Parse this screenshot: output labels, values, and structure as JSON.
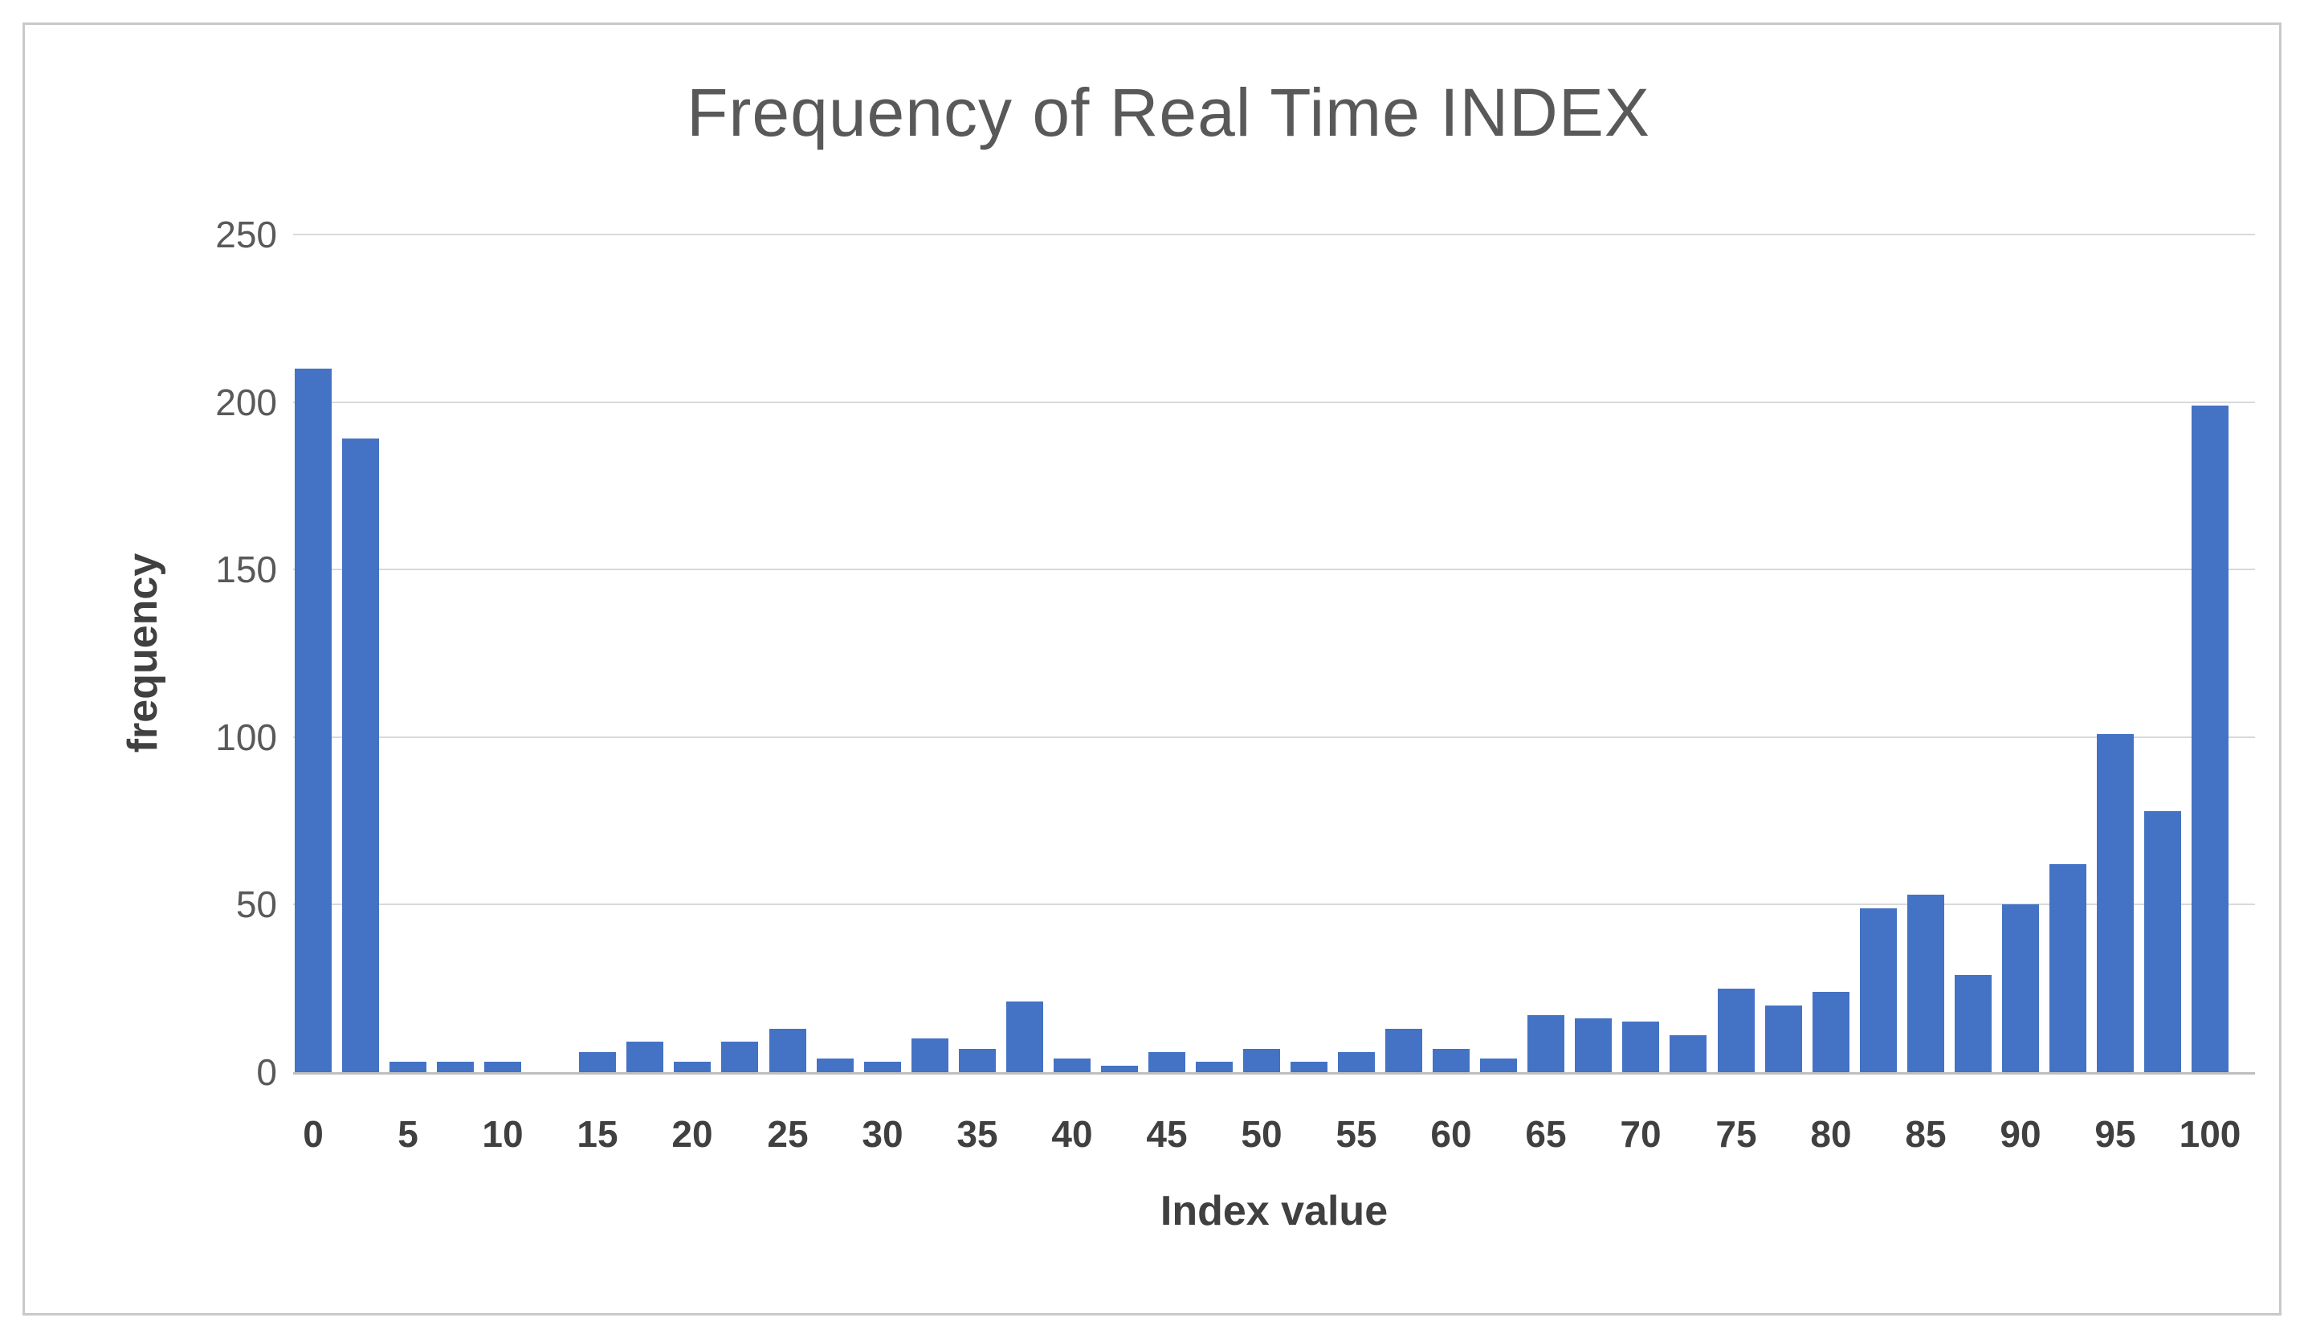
{
  "chart_data": {
    "type": "bar",
    "title": "Frequency of Real Time INDEX",
    "xlabel": "Index value",
    "ylabel": "frequency",
    "x": [
      0,
      2.5,
      5,
      7.5,
      10,
      12.5,
      15,
      17.5,
      20,
      22.5,
      25,
      27.5,
      30,
      32.5,
      35,
      37.5,
      40,
      42.5,
      45,
      47.5,
      50,
      52.5,
      55,
      57.5,
      60,
      62.5,
      65,
      67.5,
      70,
      72.5,
      75,
      77.5,
      80,
      82.5,
      85,
      87.5,
      90,
      92.5,
      95,
      97.5,
      100
    ],
    "values": [
      210,
      189,
      3,
      3,
      3,
      0,
      6,
      9,
      3,
      9,
      13,
      4,
      3,
      10,
      7,
      21,
      4,
      2,
      6,
      3,
      7,
      3,
      6,
      13,
      7,
      4,
      17,
      16,
      15,
      11,
      25,
      20,
      24,
      49,
      53,
      29,
      50,
      62,
      101,
      78,
      199
    ],
    "x_tick_labels": [
      "0",
      "5",
      "10",
      "15",
      "20",
      "25",
      "30",
      "35",
      "40",
      "45",
      "50",
      "55",
      "60",
      "65",
      "70",
      "75",
      "80",
      "85",
      "90",
      "95",
      "100"
    ],
    "x_tick_values": [
      0,
      5,
      10,
      15,
      20,
      25,
      30,
      35,
      40,
      45,
      50,
      55,
      60,
      65,
      70,
      75,
      80,
      85,
      90,
      95,
      100
    ],
    "y_ticks": [
      0,
      50,
      100,
      150,
      200,
      250
    ],
    "ylim": [
      0,
      250
    ],
    "grid": "horizontal",
    "legend": "none",
    "colors": {
      "bar": "#4472c4",
      "gridline": "#d9d9d9",
      "axis_line": "#bfbfbf",
      "title_text": "#595959",
      "y_tick_text": "#595959",
      "x_tick_text": "#404040",
      "axis_title_text": "#404040",
      "border": "#c9c9c9",
      "background": "#ffffff"
    }
  }
}
